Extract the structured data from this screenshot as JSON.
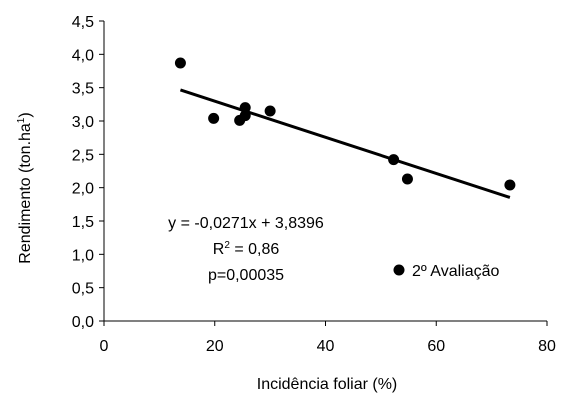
{
  "chart_data": {
    "type": "scatter",
    "title": "",
    "xlabel": "Incidência foliar (%)",
    "ylabel_main": "Rendimento (ton.ha",
    "ylabel_sup": "1",
    "ylabel_tail": ")",
    "xlim": [
      0,
      80
    ],
    "ylim": [
      0,
      4.5
    ],
    "x_ticks": [
      0,
      20,
      40,
      60,
      80
    ],
    "y_ticks": [
      0,
      0.5,
      1.0,
      1.5,
      2.0,
      2.5,
      3.0,
      3.5,
      4.0,
      4.5
    ],
    "x_tick_labels": [
      "0",
      "20",
      "40",
      "60",
      "80"
    ],
    "y_tick_labels": [
      "0,0",
      "0,5",
      "1,0",
      "1,5",
      "2,0",
      "2,5",
      "3,0",
      "3,5",
      "4,0",
      "4,5"
    ],
    "grid": false,
    "series": [
      {
        "name": "2º Avaliação",
        "color": "#000000",
        "marker": "circle",
        "points": [
          {
            "x": 13.8,
            "y": 3.87
          },
          {
            "x": 19.8,
            "y": 3.04
          },
          {
            "x": 24.5,
            "y": 3.01
          },
          {
            "x": 25.5,
            "y": 3.2
          },
          {
            "x": 25.5,
            "y": 3.08
          },
          {
            "x": 30.0,
            "y": 3.15
          },
          {
            "x": 52.3,
            "y": 2.42
          },
          {
            "x": 54.8,
            "y": 2.13
          },
          {
            "x": 73.3,
            "y": 2.04
          }
        ]
      }
    ],
    "trendline": {
      "slope": -0.0271,
      "intercept": 3.8396,
      "x_range": [
        13.8,
        73.3
      ],
      "color": "#000000"
    },
    "annotations": {
      "equation": "y = -0,0271x + 3,8396",
      "r2_main": "R",
      "r2_sup": "2",
      "r2_tail": " = 0,86",
      "pvalue": "p=0,00035"
    },
    "legend": {
      "label": "2º Avaliação",
      "position": "bottom-right"
    }
  }
}
